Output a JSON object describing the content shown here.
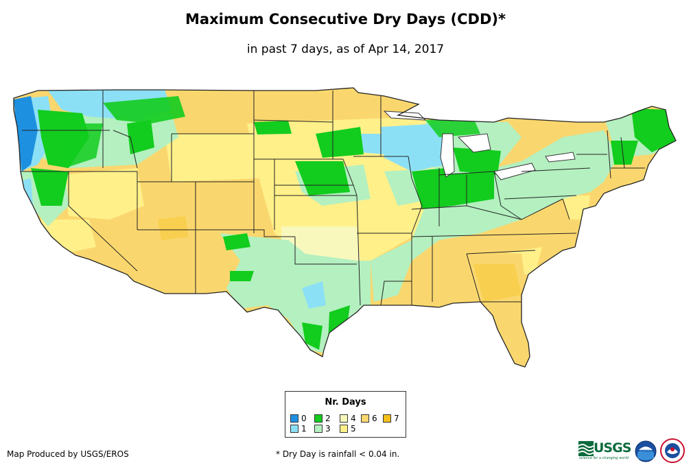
{
  "title": "Maximum Consecutive Dry Days (CDD)*",
  "subtitle": "in past 7 days, as of Apr 14, 2017",
  "legend": {
    "title": "Nr. Days",
    "items": [
      {
        "label": "0",
        "color": "#1e90e0"
      },
      {
        "label": "1",
        "color": "#8ce0f5"
      },
      {
        "label": "2",
        "color": "#12cc1e"
      },
      {
        "label": "3",
        "color": "#b4f0c0"
      },
      {
        "label": "4",
        "color": "#f8f8bc"
      },
      {
        "label": "5",
        "color": "#fff08a"
      },
      {
        "label": "6",
        "color": "#fad76e"
      },
      {
        "label": "7",
        "color": "#f5c018"
      }
    ]
  },
  "credit": "Map Produced by USGS/EROS",
  "footnote": "* Dry Day is rainfall < 0.04 in.",
  "logos": {
    "usgs": "USGS",
    "usgs_tagline": "science for a changing world",
    "noaa": "noaa",
    "nws_icon": "nws-icon"
  }
}
